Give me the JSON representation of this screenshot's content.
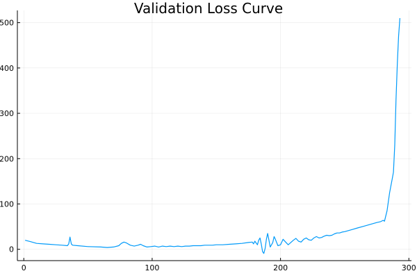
{
  "chart_data": {
    "type": "line",
    "title": "Validation Loss Curve",
    "xlabel": "",
    "ylabel": "",
    "xlim": [
      -5,
      302
    ],
    "ylim": [
      -25,
      527
    ],
    "x_ticks": [
      {
        "value": 0,
        "label": "0"
      },
      {
        "value": 100,
        "label": "100"
      },
      {
        "value": 200,
        "label": "200"
      },
      {
        "value": 300,
        "label": "300"
      }
    ],
    "y_ticks": [
      {
        "value": 0,
        "label": "0"
      },
      {
        "value": 100,
        "label": "100"
      },
      {
        "value": 200,
        "label": "200"
      },
      {
        "value": 300,
        "label": "300"
      },
      {
        "value": 400,
        "label": "400"
      },
      {
        "value": 500,
        "label": "500"
      }
    ],
    "grid": true,
    "legend": "none",
    "line_color": "#009af9",
    "series": [
      {
        "points": [
          [
            1,
            20
          ],
          [
            5,
            17
          ],
          [
            10,
            13
          ],
          [
            15,
            12
          ],
          [
            20,
            11
          ],
          [
            25,
            10
          ],
          [
            30,
            9
          ],
          [
            34,
            8
          ],
          [
            35,
            12
          ],
          [
            36,
            27
          ],
          [
            37,
            12
          ],
          [
            38,
            9
          ],
          [
            42,
            8
          ],
          [
            50,
            6
          ],
          [
            60,
            5
          ],
          [
            65,
            4
          ],
          [
            70,
            5
          ],
          [
            74,
            8
          ],
          [
            76,
            13
          ],
          [
            78,
            16
          ],
          [
            80,
            14
          ],
          [
            83,
            9
          ],
          [
            86,
            7
          ],
          [
            89,
            9
          ],
          [
            91,
            11
          ],
          [
            93,
            8
          ],
          [
            96,
            5
          ],
          [
            99,
            6
          ],
          [
            102,
            7
          ],
          [
            105,
            5
          ],
          [
            108,
            7
          ],
          [
            111,
            6
          ],
          [
            114,
            7
          ],
          [
            117,
            6
          ],
          [
            120,
            7
          ],
          [
            123,
            6
          ],
          [
            126,
            7
          ],
          [
            129,
            7
          ],
          [
            132,
            8
          ],
          [
            135,
            8
          ],
          [
            138,
            8
          ],
          [
            141,
            9
          ],
          [
            144,
            9
          ],
          [
            147,
            9
          ],
          [
            150,
            10
          ],
          [
            155,
            10
          ],
          [
            160,
            11
          ],
          [
            165,
            12
          ],
          [
            170,
            13
          ],
          [
            175,
            15
          ],
          [
            178,
            16
          ],
          [
            179,
            12
          ],
          [
            180,
            18
          ],
          [
            181,
            14
          ],
          [
            182,
            10
          ],
          [
            183,
            20
          ],
          [
            184,
            25
          ],
          [
            185,
            12
          ],
          [
            186,
            -5
          ],
          [
            187,
            -9
          ],
          [
            188,
            2
          ],
          [
            189,
            22
          ],
          [
            190,
            35
          ],
          [
            191,
            20
          ],
          [
            192,
            5
          ],
          [
            194,
            15
          ],
          [
            195,
            28
          ],
          [
            196,
            22
          ],
          [
            198,
            8
          ],
          [
            200,
            10
          ],
          [
            202,
            22
          ],
          [
            204,
            16
          ],
          [
            206,
            10
          ],
          [
            208,
            15
          ],
          [
            210,
            20
          ],
          [
            212,
            24
          ],
          [
            214,
            18
          ],
          [
            216,
            16
          ],
          [
            218,
            22
          ],
          [
            220,
            25
          ],
          [
            222,
            21
          ],
          [
            224,
            20
          ],
          [
            226,
            25
          ],
          [
            228,
            28
          ],
          [
            230,
            25
          ],
          [
            232,
            26
          ],
          [
            234,
            29
          ],
          [
            236,
            31
          ],
          [
            238,
            30
          ],
          [
            240,
            31
          ],
          [
            242,
            34
          ],
          [
            244,
            36
          ],
          [
            246,
            36
          ],
          [
            248,
            38
          ],
          [
            250,
            39
          ],
          [
            255,
            43
          ],
          [
            260,
            47
          ],
          [
            265,
            51
          ],
          [
            270,
            55
          ],
          [
            275,
            59
          ],
          [
            278,
            61
          ],
          [
            280,
            64
          ],
          [
            281,
            62
          ],
          [
            283,
            85
          ],
          [
            285,
            125
          ],
          [
            287,
            155
          ],
          [
            288,
            170
          ],
          [
            289,
            230
          ],
          [
            290,
            330
          ],
          [
            291,
            410
          ],
          [
            292,
            470
          ],
          [
            293,
            510
          ]
        ]
      }
    ]
  }
}
